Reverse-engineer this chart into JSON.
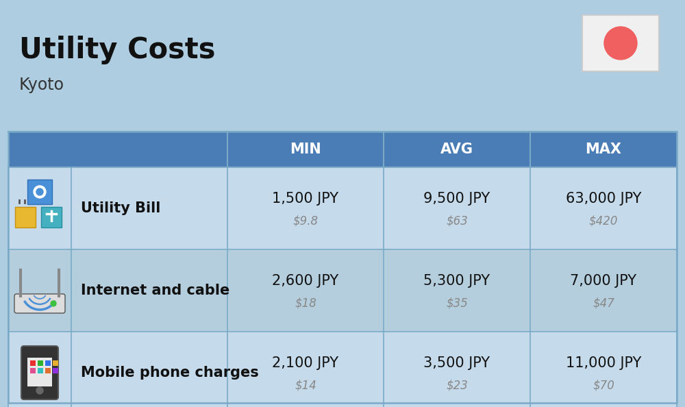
{
  "title": "Utility Costs",
  "subtitle": "Kyoto",
  "background_color": "#aecde0",
  "header_color": "#4a7db5",
  "header_text_color": "#ffffff",
  "row_color_odd": "#c5daea",
  "row_color_even": "#b5cedd",
  "border_color": "#7aaac8",
  "flag_bg": "#f0f0f0",
  "flag_circle_color": "#f06060",
  "columns": [
    "MIN",
    "AVG",
    "MAX"
  ],
  "rows": [
    {
      "label": "Utility Bill",
      "icon": "utility",
      "min_jpy": "1,500 JPY",
      "min_usd": "$9.8",
      "avg_jpy": "9,500 JPY",
      "avg_usd": "$63",
      "max_jpy": "63,000 JPY",
      "max_usd": "$420"
    },
    {
      "label": "Internet and cable",
      "icon": "internet",
      "min_jpy": "2,600 JPY",
      "min_usd": "$18",
      "avg_jpy": "5,300 JPY",
      "avg_usd": "$35",
      "max_jpy": "7,000 JPY",
      "max_usd": "$47"
    },
    {
      "label": "Mobile phone charges",
      "icon": "mobile",
      "min_jpy": "2,100 JPY",
      "min_usd": "$14",
      "avg_jpy": "3,500 JPY",
      "avg_usd": "$23",
      "max_jpy": "11,000 JPY",
      "max_usd": "$70"
    }
  ],
  "title_fontsize": 30,
  "subtitle_fontsize": 17,
  "header_fontsize": 15,
  "label_fontsize": 15,
  "value_fontsize": 15,
  "usd_fontsize": 12
}
